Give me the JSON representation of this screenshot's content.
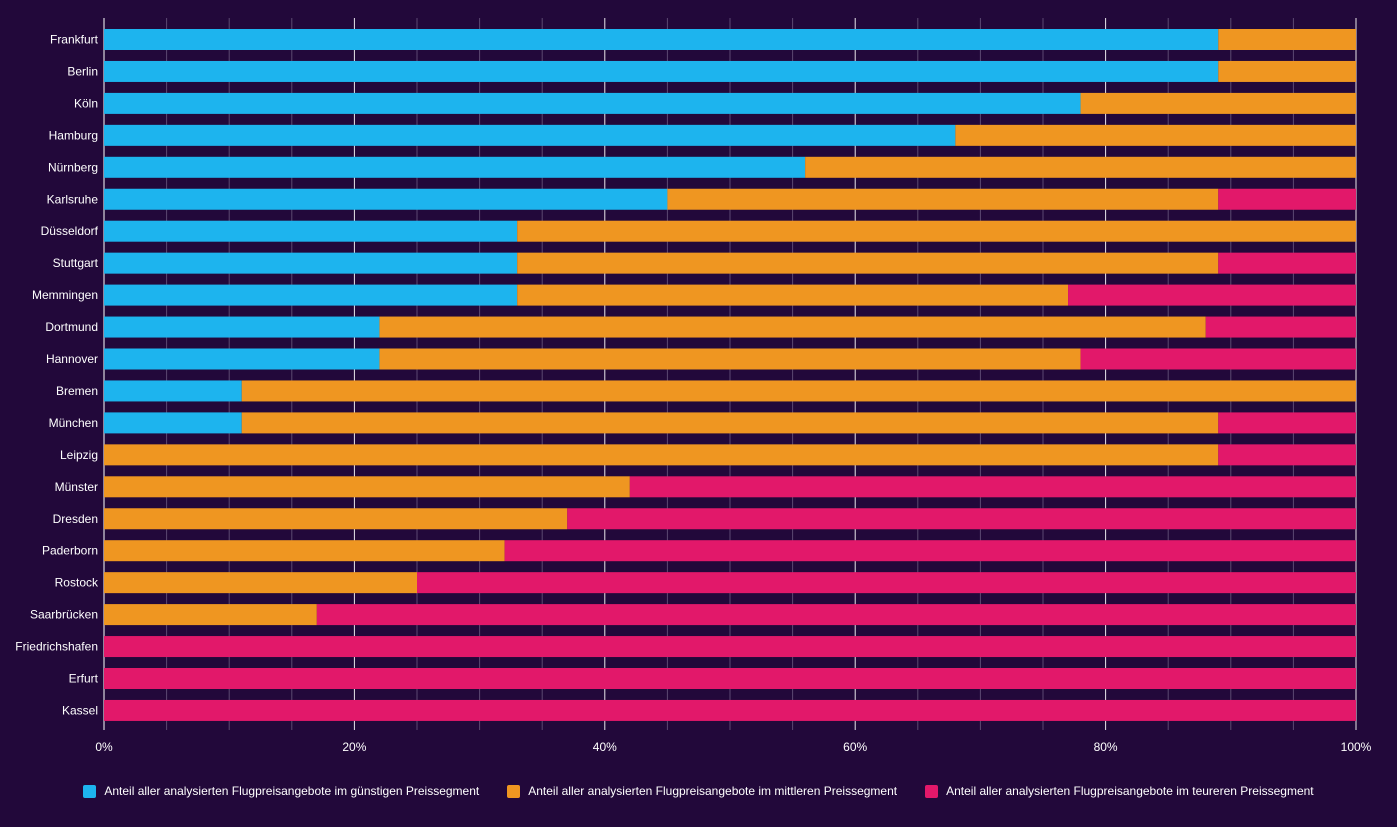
{
  "chart_data": {
    "type": "bar",
    "orientation": "horizontal",
    "stacked": true,
    "categories": [
      "Frankfurt",
      "Berlin",
      "Köln",
      "Hamburg",
      "Nürnberg",
      "Karlsruhe",
      "Düsseldorf",
      "Stuttgart",
      "Memmingen",
      "Dortmund",
      "Hannover",
      "Bremen",
      "München",
      "Leipzig",
      "Münster",
      "Dresden",
      "Paderborn",
      "Rostock",
      "Saarbrücken",
      "Friedrichshafen",
      "Erfurt",
      "Kassel"
    ],
    "series": [
      {
        "name": "Anteil aller analysierten Flugpreisangebote im günstigen Preissegment",
        "color": "#1db4ee",
        "values": [
          89,
          89,
          78,
          68,
          56,
          45,
          33,
          33,
          33,
          22,
          22,
          11,
          11,
          0,
          0,
          0,
          0,
          0,
          0,
          0,
          0,
          0
        ]
      },
      {
        "name": "Anteil aller analysierten Flugpreisangebote im mittleren Preissegment",
        "color": "#ef9621",
        "values": [
          11,
          11,
          22,
          32,
          44,
          44,
          67,
          56,
          44,
          66,
          56,
          89,
          78,
          89,
          42,
          37,
          32,
          25,
          17,
          0,
          0,
          0
        ]
      },
      {
        "name": "Anteil aller analysierten Flugpreisangebote im teureren Preissegment",
        "color": "#e2186a",
        "values": [
          0,
          0,
          0,
          0,
          0,
          11,
          0,
          11,
          23,
          12,
          22,
          0,
          11,
          11,
          58,
          63,
          68,
          75,
          83,
          100,
          100,
          100
        ]
      }
    ],
    "xlim": [
      0,
      100
    ],
    "xticks": [
      "0%",
      "20%",
      "40%",
      "60%",
      "80%",
      "100%"
    ],
    "grid": true,
    "legend_position": "bottom"
  }
}
